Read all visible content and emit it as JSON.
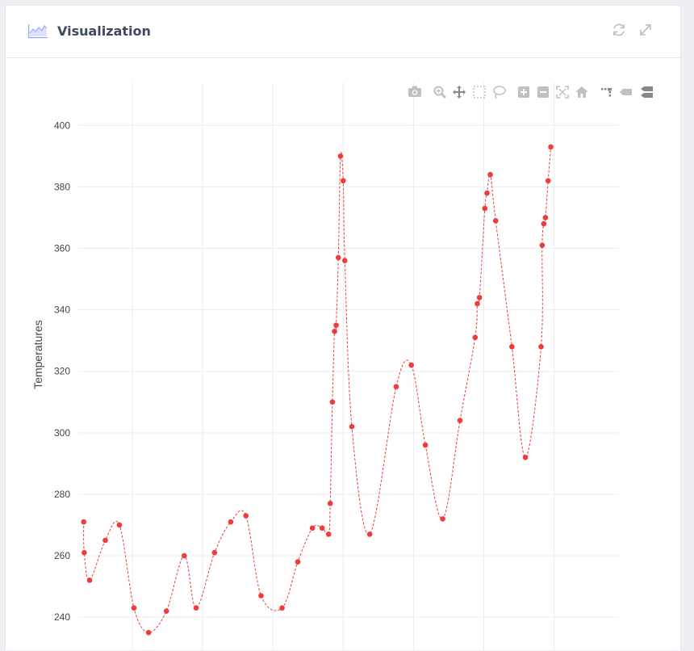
{
  "panel": {
    "title": "Visualization",
    "icons": {
      "chart": "area-chart-icon",
      "refresh": "refresh-icon",
      "expand": "expand-icon"
    }
  },
  "modebar": [
    {
      "name": "camera-icon",
      "label": "Download plot as a png"
    },
    {
      "name": "zoom-icon",
      "label": "Zoom"
    },
    {
      "name": "pan-icon",
      "label": "Pan"
    },
    {
      "name": "box-select-icon",
      "label": "Box Select"
    },
    {
      "name": "lasso-select-icon",
      "label": "Lasso Select"
    },
    {
      "name": "zoom-in-icon",
      "label": "Zoom in"
    },
    {
      "name": "zoom-out-icon",
      "label": "Zoom out"
    },
    {
      "name": "autoscale-icon",
      "label": "Autoscale"
    },
    {
      "name": "reset-axes-icon",
      "label": "Reset axes"
    },
    {
      "name": "spike-lines-icon",
      "label": "Toggle Spike Lines"
    },
    {
      "name": "hover-closest-icon",
      "label": "Show closest data on hover"
    },
    {
      "name": "hover-compare-icon",
      "label": "Compare data on hover"
    }
  ],
  "chart_data": {
    "type": "scatter",
    "mode": "lines+markers",
    "line_shape": "spline",
    "line_dash": "dash",
    "color": "#ef3b3b",
    "ylabel": "Temperatures",
    "ylim": [
      229,
      414
    ],
    "yticks": [
      240,
      260,
      280,
      300,
      320,
      340,
      360,
      380,
      400
    ],
    "xlim": [
      0,
      100
    ],
    "x_tick_labels_visible": false,
    "grid": true,
    "series": [
      {
        "x": [
          1.0,
          1.1,
          2.1,
          5.0,
          7.6,
          10.3,
          13.0,
          16.3,
          19.6,
          21.8,
          25.2,
          28.2,
          31.0,
          33.8,
          37.7,
          40.6,
          43.3,
          45.1,
          46.3,
          46.6,
          47.0,
          47.4,
          47.7,
          48.1,
          48.5,
          49.0,
          49.3,
          50.6,
          53.9,
          58.8,
          61.6,
          64.2,
          67.4,
          70.6,
          73.4,
          73.8,
          74.2,
          75.2,
          75.6,
          76.2,
          77.2,
          80.2,
          82.7,
          85.6,
          85.8,
          86.1,
          86.4,
          86.9,
          87.4
        ],
        "y": [
          271,
          261,
          252,
          265,
          270,
          243,
          235,
          242,
          260,
          243,
          261,
          271,
          273,
          247,
          243,
          258,
          269,
          269,
          267,
          277,
          310,
          333,
          335,
          357,
          390,
          382,
          356,
          302,
          267,
          315,
          322,
          296,
          272,
          304,
          331,
          342,
          344,
          373,
          378,
          384,
          369,
          328,
          292,
          328,
          361,
          368,
          370,
          382,
          393
        ]
      }
    ]
  }
}
